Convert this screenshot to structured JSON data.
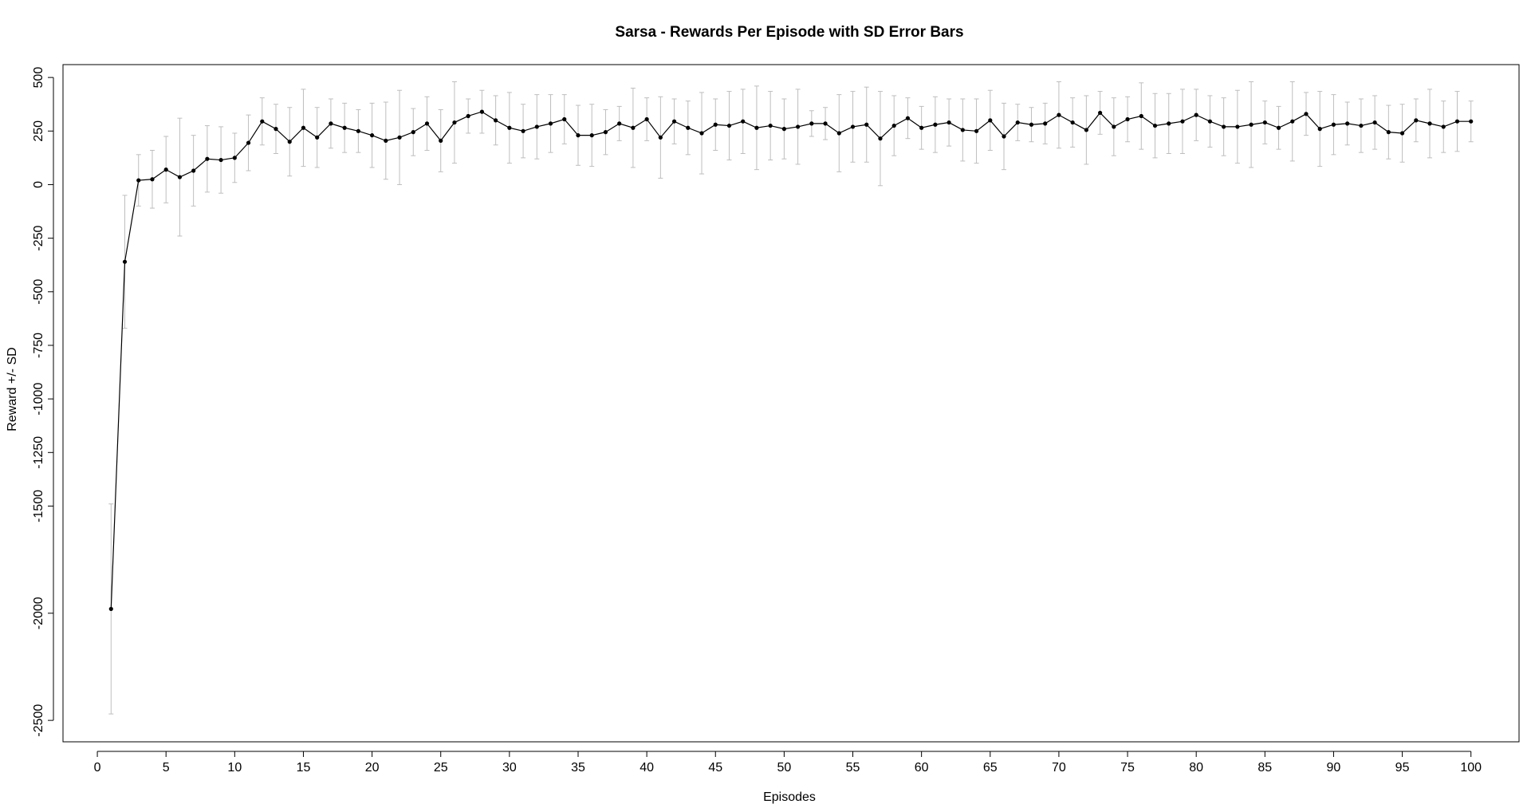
{
  "chart_data": {
    "type": "line",
    "title": "Sarsa - Rewards Per Episode with SD Error Bars",
    "xlabel": "Episodes",
    "ylabel": "Reward +/- SD",
    "xlim": [
      -2.5,
      103.5
    ],
    "ylim": [
      -2600,
      560
    ],
    "x_ticks": [
      0,
      5,
      10,
      15,
      20,
      25,
      30,
      35,
      40,
      45,
      50,
      55,
      60,
      65,
      70,
      75,
      80,
      85,
      90,
      95,
      100
    ],
    "y_ticks": [
      500,
      250,
      0,
      -250,
      -500,
      -750,
      -1000,
      -1250,
      -1500,
      -2000,
      -2500
    ],
    "y_tick_labels": [
      "500",
      "250",
      "0",
      "-250",
      "-500",
      "-750",
      "-1000",
      "-1250",
      "-1500",
      "-2000",
      "-2500"
    ],
    "grid": false,
    "legend": "none",
    "colors": {
      "line": "#000000",
      "points": "#000000",
      "error_bars": "#bebebe",
      "axes": "#000000"
    },
    "series": [
      {
        "x": [
          1,
          2,
          3,
          4,
          5,
          6,
          7,
          8,
          9,
          10,
          11,
          12,
          13,
          14,
          15,
          16,
          17,
          18,
          19,
          20,
          21,
          22,
          23,
          24,
          25,
          26,
          27,
          28,
          29,
          30,
          31,
          32,
          33,
          34,
          35,
          36,
          37,
          38,
          39,
          40,
          41,
          42,
          43,
          44,
          45,
          46,
          47,
          48,
          49,
          50,
          51,
          52,
          53,
          54,
          55,
          56,
          57,
          58,
          59,
          60,
          61,
          62,
          63,
          64,
          65,
          66,
          67,
          68,
          69,
          70,
          71,
          72,
          73,
          74,
          75,
          76,
          77,
          78,
          79,
          80,
          81,
          82,
          83,
          84,
          85,
          86,
          87,
          88,
          89,
          90,
          91,
          92,
          93,
          94,
          95,
          96,
          97,
          98,
          99,
          100
        ],
        "mean": [
          -1980,
          -360,
          20,
          25,
          70,
          35,
          65,
          120,
          115,
          125,
          195,
          295,
          260,
          200,
          265,
          220,
          285,
          265,
          250,
          230,
          205,
          220,
          245,
          285,
          205,
          290,
          320,
          340,
          300,
          265,
          250,
          270,
          285,
          305,
          230,
          230,
          245,
          285,
          265,
          305,
          220,
          295,
          265,
          240,
          280,
          275,
          295,
          265,
          275,
          260,
          270,
          285,
          285,
          240,
          270,
          280,
          215,
          275,
          310,
          265,
          280,
          290,
          255,
          250,
          300,
          225,
          290,
          280,
          285,
          325,
          290,
          255,
          335,
          270,
          305,
          320,
          275,
          285,
          295,
          325,
          295,
          270,
          270,
          280,
          290,
          265,
          295,
          330,
          260,
          280,
          285,
          275,
          290,
          245,
          240,
          300,
          285,
          270,
          295,
          295
        ],
        "sd": [
          490,
          310,
          120,
          135,
          155,
          275,
          165,
          155,
          155,
          115,
          130,
          110,
          115,
          160,
          180,
          140,
          115,
          115,
          100,
          150,
          180,
          220,
          110,
          125,
          145,
          190,
          80,
          100,
          115,
          165,
          125,
          150,
          135,
          115,
          140,
          145,
          105,
          80,
          185,
          100,
          190,
          105,
          125,
          190,
          120,
          160,
          150,
          195,
          160,
          140,
          175,
          60,
          75,
          180,
          165,
          175,
          220,
          140,
          95,
          100,
          130,
          110,
          145,
          150,
          140,
          155,
          85,
          80,
          95,
          155,
          115,
          160,
          100,
          135,
          105,
          155,
          150,
          140,
          150,
          120,
          120,
          135,
          170,
          200,
          100,
          100,
          185,
          100,
          175,
          140,
          100,
          125,
          125,
          125,
          135,
          100,
          160,
          120,
          140,
          95
        ]
      }
    ]
  }
}
